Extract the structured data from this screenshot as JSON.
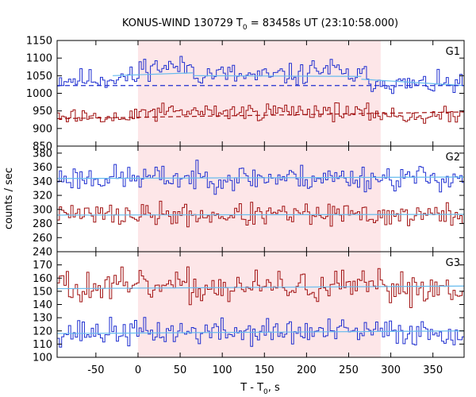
{
  "chart_data": {
    "type": "line",
    "title": {
      "main": "KONUS-WIND 130729 T",
      "sub": "0",
      "rest": " = 83458s UT (23:10:58.000)"
    },
    "xlabel": {
      "main": "T - T",
      "sub": "0",
      "rest": ", s"
    },
    "ylabel": "counts / sec",
    "xlim": [
      -96,
      387
    ],
    "x_ticks": [
      -50,
      0,
      50,
      100,
      150,
      200,
      250,
      300,
      350
    ],
    "x_tick_labels": [
      "-50",
      "0",
      "50",
      "100",
      "150",
      "200",
      "250",
      "300",
      "350"
    ],
    "shaded_interval": [
      0,
      288
    ],
    "shade_color": "#fde6e8",
    "series_colors": {
      "soft": "#1f2fd0",
      "hard": "#a01010",
      "background_fit": "#66bbee"
    },
    "panels": [
      {
        "label": "G1",
        "ylim": [
          850,
          1150
        ],
        "y_ticks": [
          850,
          900,
          950,
          1000,
          1050,
          1100,
          1150
        ],
        "y_tick_labels": [
          "850",
          "900",
          "950",
          "1000",
          "1050",
          "1100",
          "1150"
        ],
        "blue_bins": [
          {
            "x0": -96,
            "x1": -35,
            "y": 1040
          },
          {
            "x0": -35,
            "x1": 0,
            "y": 1045
          },
          {
            "x0": 0,
            "x1": 65,
            "y": 1075
          },
          {
            "x0": 65,
            "x1": 115,
            "y": 1055
          },
          {
            "x0": 115,
            "x1": 165,
            "y": 1048
          },
          {
            "x0": 165,
            "x1": 200,
            "y": 1052
          },
          {
            "x0": 200,
            "x1": 240,
            "y": 1068
          },
          {
            "x0": 240,
            "x1": 270,
            "y": 1050
          },
          {
            "x0": 270,
            "x1": 300,
            "y": 1035
          },
          {
            "x0": 300,
            "x1": 387,
            "y": 1025
          }
        ],
        "blue_noise": 15,
        "red_bins": [
          {
            "x0": -96,
            "x1": 0,
            "y": 928
          },
          {
            "x0": 0,
            "x1": 150,
            "y": 947
          },
          {
            "x0": 150,
            "x1": 250,
            "y": 950
          },
          {
            "x0": 250,
            "x1": 300,
            "y": 942
          },
          {
            "x0": 300,
            "x1": 387,
            "y": 935
          }
        ],
        "red_noise": 12,
        "fit_lines": [
          {
            "series": "soft",
            "style": "solid",
            "points": [
              [
                -30,
                1050
              ],
              [
                65,
                1058
              ]
            ]
          },
          {
            "series": "soft",
            "style": "solid",
            "points": [
              [
                65,
                1050
              ],
              [
                265,
                1048
              ]
            ]
          },
          {
            "series": "soft",
            "style": "solid",
            "points": [
              [
                265,
                1040
              ],
              [
                387,
                1022
              ]
            ]
          },
          {
            "series": "soft",
            "style": "dashed",
            "points": [
              [
                -96,
                1022
              ],
              [
                387,
                1022
              ]
            ]
          },
          {
            "series": "hard",
            "style": "dashed",
            "points": [
              [
                -96,
                928
              ],
              [
                387,
                947
              ]
            ]
          }
        ],
        "seed": 11
      },
      {
        "label": "G2",
        "ylim": [
          240,
          390
        ],
        "y_ticks": [
          240,
          260,
          280,
          300,
          320,
          340,
          360,
          380
        ],
        "y_tick_labels": [
          "240",
          "260",
          "280",
          "300",
          "320",
          "340",
          "360",
          "380"
        ],
        "blue_bins": [
          {
            "x0": -96,
            "x1": 387,
            "y": 345
          }
        ],
        "blue_noise": 9,
        "red_bins": [
          {
            "x0": -96,
            "x1": 387,
            "y": 292
          }
        ],
        "red_noise": 8,
        "fit_lines": [
          {
            "series": "soft",
            "style": "solid",
            "points": [
              [
                -96,
                344
              ],
              [
                387,
                346
              ]
            ]
          },
          {
            "series": "hard",
            "style": "solid",
            "points": [
              [
                -96,
                292
              ],
              [
                387,
                293
              ]
            ]
          }
        ],
        "seed": 23
      },
      {
        "label": "G3",
        "ylim": [
          100,
          180
        ],
        "y_ticks": [
          100,
          110,
          120,
          130,
          140,
          150,
          160,
          170
        ],
        "y_tick_labels": [
          "100",
          "110",
          "120",
          "130",
          "140",
          "150",
          "160",
          "170"
        ],
        "blue_bins": [
          {
            "x0": -96,
            "x1": 387,
            "y": 119
          }
        ],
        "blue_noise": 5,
        "red_bins": [
          {
            "x0": -96,
            "x1": 387,
            "y": 153
          }
        ],
        "red_noise": 6,
        "fit_lines": [
          {
            "series": "soft",
            "style": "solid",
            "points": [
              [
                -96,
                118
              ],
              [
                387,
                120
              ]
            ]
          },
          {
            "series": "hard",
            "style": "solid",
            "points": [
              [
                -96,
                152
              ],
              [
                387,
                154
              ]
            ]
          }
        ],
        "seed": 37
      }
    ]
  }
}
